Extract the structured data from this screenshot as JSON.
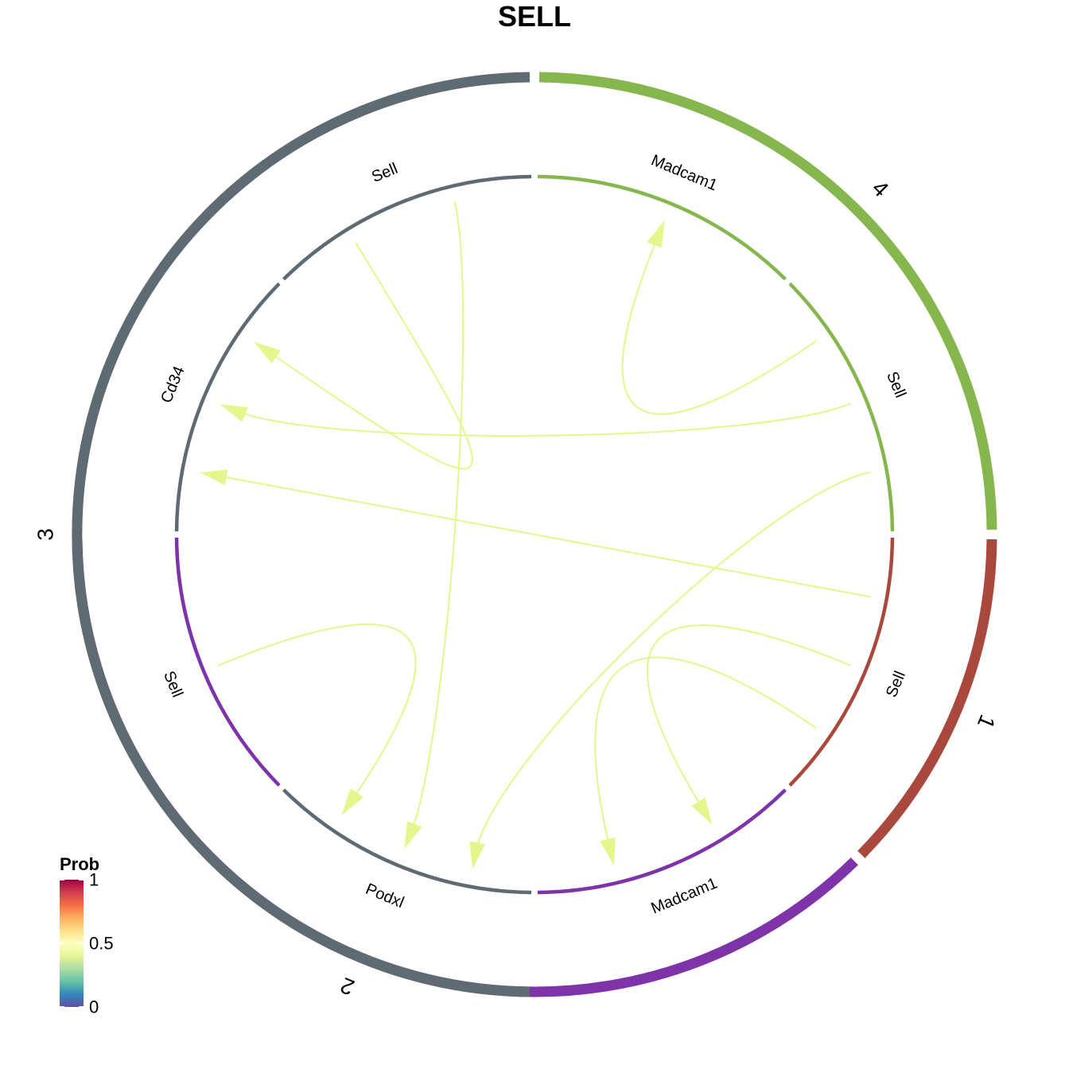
{
  "title": "SELL",
  "groups": [
    {
      "id": "1",
      "label": "1",
      "color": "#A9483C"
    },
    {
      "id": "2",
      "label": "2",
      "color": "#7E34A8"
    },
    {
      "id": "3",
      "label": "3",
      "color": "#5E6B72"
    },
    {
      "id": "4",
      "label": "4",
      "color": "#86B74F"
    }
  ],
  "genes": [
    {
      "id": "sell-1",
      "label": "Sell",
      "group": "1",
      "role": "ligand"
    },
    {
      "id": "madcam1-2",
      "label": "Madcam1",
      "group": "2",
      "role": "receptor"
    },
    {
      "id": "podxl-3",
      "label": "Podxl",
      "group": "3",
      "role": "receptor"
    },
    {
      "id": "sell-2",
      "label": "Sell",
      "group": "2",
      "role": "ligand"
    },
    {
      "id": "cd34-3",
      "label": "Cd34",
      "group": "3",
      "role": "receptor"
    },
    {
      "id": "sell-3",
      "label": "Sell",
      "group": "3",
      "role": "ligand"
    },
    {
      "id": "madcam1-4",
      "label": "Madcam1",
      "group": "4",
      "role": "receptor"
    },
    {
      "id": "sell-4",
      "label": "Sell",
      "group": "4",
      "role": "ligand"
    }
  ],
  "links": [
    {
      "from": "sell-1",
      "to": "cd34-3",
      "prob": 0.5
    },
    {
      "from": "sell-1",
      "to": "madcam1-2",
      "prob": 0.5
    },
    {
      "from": "sell-1",
      "to": "madcam1-2",
      "prob": 0.5
    },
    {
      "from": "sell-4",
      "to": "madcam1-4",
      "prob": 0.5
    },
    {
      "from": "sell-4",
      "to": "cd34-3",
      "prob": 0.5
    },
    {
      "from": "sell-4",
      "to": "podxl-3",
      "prob": 0.5
    },
    {
      "from": "sell-3",
      "to": "cd34-3",
      "prob": 0.5
    },
    {
      "from": "sell-3",
      "to": "podxl-3",
      "prob": 0.5
    },
    {
      "from": "sell-2",
      "to": "podxl-3",
      "prob": 0.5
    }
  ],
  "legend": {
    "title": "Prob",
    "ticks": [
      {
        "value": 1,
        "label": "1"
      },
      {
        "value": 0.5,
        "label": "0.5"
      },
      {
        "value": 0,
        "label": "0"
      }
    ],
    "colors": [
      "#9E0142",
      "#D53E4F",
      "#F46D43",
      "#FDAE61",
      "#FEE08B",
      "#FFFFBF",
      "#E6F598",
      "#ABDDA4",
      "#66C2A5",
      "#3288BD",
      "#5E4FA2"
    ],
    "link_color": "#E6F58C"
  }
}
